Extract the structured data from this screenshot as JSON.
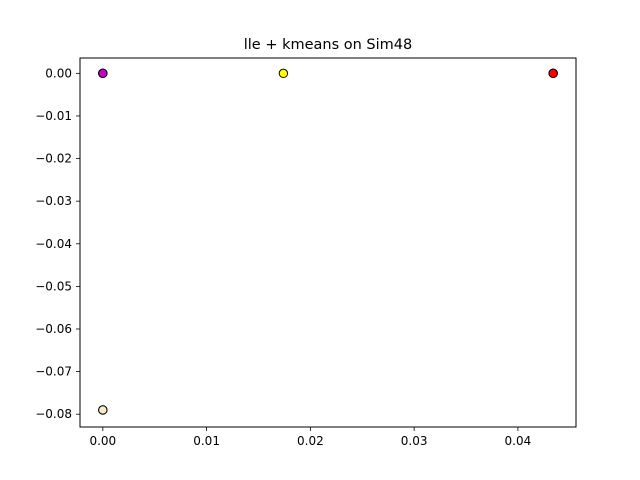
{
  "chart_data": {
    "type": "scatter",
    "title": "lle + kmeans on Sim48",
    "xlabel": "",
    "ylabel": "",
    "xlim": [
      -0.0022,
      0.0456
    ],
    "ylim": [
      -0.083,
      0.0036
    ],
    "grid": false,
    "legend": "none",
    "x_ticks": [
      {
        "value": 0.0,
        "label": "0.00"
      },
      {
        "value": 0.01,
        "label": "0.01"
      },
      {
        "value": 0.02,
        "label": "0.02"
      },
      {
        "value": 0.03,
        "label": "0.03"
      },
      {
        "value": 0.04,
        "label": "0.04"
      }
    ],
    "y_ticks": [
      {
        "value": 0.0,
        "label": "0.00"
      },
      {
        "value": -0.01,
        "label": "−0.01"
      },
      {
        "value": -0.02,
        "label": "−0.02"
      },
      {
        "value": -0.03,
        "label": "−0.03"
      },
      {
        "value": -0.04,
        "label": "−0.04"
      },
      {
        "value": -0.05,
        "label": "−0.05"
      },
      {
        "value": -0.06,
        "label": "−0.06"
      },
      {
        "value": -0.07,
        "label": "−0.07"
      },
      {
        "value": -0.08,
        "label": "−0.08"
      }
    ],
    "points": [
      {
        "x": 0.0,
        "y": -0.079,
        "color": "#ffe4c4"
      },
      {
        "x": 0.0,
        "y": -0.079,
        "color": "#fce9c8"
      },
      {
        "x": 0.0,
        "y": 0.0,
        "color": "#3a2fd6"
      },
      {
        "x": 0.0,
        "y": 0.0,
        "color": "#ff00ff"
      },
      {
        "x": 0.0,
        "y": 0.0,
        "color": "#c800c8"
      },
      {
        "x": 0.0174,
        "y": 0.0,
        "color": "#ffff00"
      },
      {
        "x": 0.0434,
        "y": 0.0,
        "color": "#ff2020"
      },
      {
        "x": 0.0434,
        "y": 0.0,
        "color": "#e00000"
      },
      {
        "x": 0.0434,
        "y": 0.0,
        "color": "#ff0000"
      }
    ],
    "marker_edge_color": "#000000"
  }
}
